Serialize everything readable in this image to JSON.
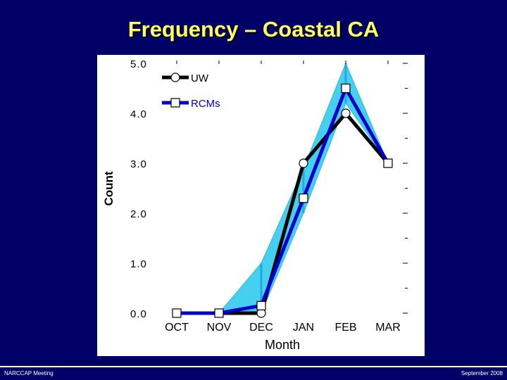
{
  "slide": {
    "title": "Frequency – Coastal CA",
    "footer_left": "NARCCAP Meeting",
    "footer_right": "September 2008"
  },
  "colors": {
    "background": "#000066",
    "title": "#ffff66",
    "uw": "#000000",
    "rcms": "#0000cc",
    "range_band": "#33ccee"
  },
  "chart_data": {
    "type": "line",
    "title": "",
    "xlabel": "Month",
    "ylabel": "Count",
    "categories": [
      "OCT",
      "NOV",
      "DEC",
      "JAN",
      "FEB",
      "MAR"
    ],
    "y_tick_labels": [
      "0.0",
      "1.0",
      "2.0",
      "3.0",
      "4.0",
      "5.0"
    ],
    "ylim": [
      0,
      5
    ],
    "legend_position": "top-left",
    "series": [
      {
        "name": "UW",
        "values": [
          0,
          0,
          0,
          3.0,
          4.0,
          3.0
        ],
        "marker": "circle",
        "color": "#000000"
      },
      {
        "name": "RCMs",
        "values": [
          0,
          0,
          0.15,
          2.3,
          4.5,
          3.0
        ],
        "marker": "square",
        "color": "#0000cc"
      }
    ],
    "rcm_range": {
      "upper": [
        0,
        0,
        1.0,
        2.9,
        5.0,
        3.0
      ],
      "lower": [
        0,
        0,
        0,
        2.0,
        4.2,
        3.0
      ]
    },
    "grid": false
  }
}
